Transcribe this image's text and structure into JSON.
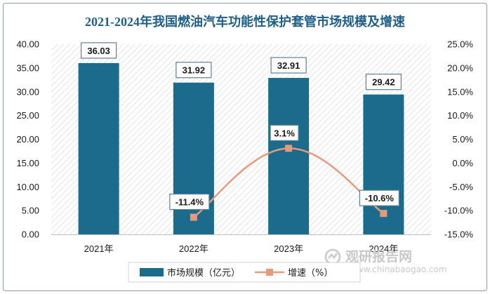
{
  "chart_data": {
    "type": "bar",
    "title": "2021-2024年我国燃油汽车功能性保护套管市场规模及增速",
    "categories": [
      "2021年",
      "2022年",
      "2023年",
      "2024年"
    ],
    "series": [
      {
        "name": "市场规模（亿元）",
        "type": "bar",
        "axis": "left",
        "values": [
          36.03,
          31.92,
          32.91,
          29.42
        ],
        "labels": [
          "36.03",
          "31.92",
          "32.91",
          "29.42"
        ],
        "color": "#1a6b8c"
      },
      {
        "name": "增速（%）",
        "type": "line",
        "axis": "right",
        "values": [
          null,
          -11.4,
          3.1,
          -10.6
        ],
        "labels": [
          "",
          "-11.4%",
          "3.1%",
          "-10.6%"
        ],
        "color": "#e8997a"
      }
    ],
    "y_left": {
      "min": 0,
      "max": 40,
      "step": 5,
      "ticks": [
        "0.00",
        "5.00",
        "10.00",
        "15.00",
        "20.00",
        "25.00",
        "30.00",
        "35.00",
        "40.00"
      ]
    },
    "y_right": {
      "min": -15,
      "max": 25,
      "step": 5,
      "ticks": [
        "-15.0%",
        "-10.0%",
        "-5.0%",
        "0.0%",
        "5.0%",
        "10.0%",
        "15.0%",
        "20.0%",
        "25.0%"
      ]
    },
    "legend_position": "bottom",
    "grid": false
  },
  "watermark": {
    "brand": "观研报告网",
    "url": "www.chinabaogao.com"
  }
}
